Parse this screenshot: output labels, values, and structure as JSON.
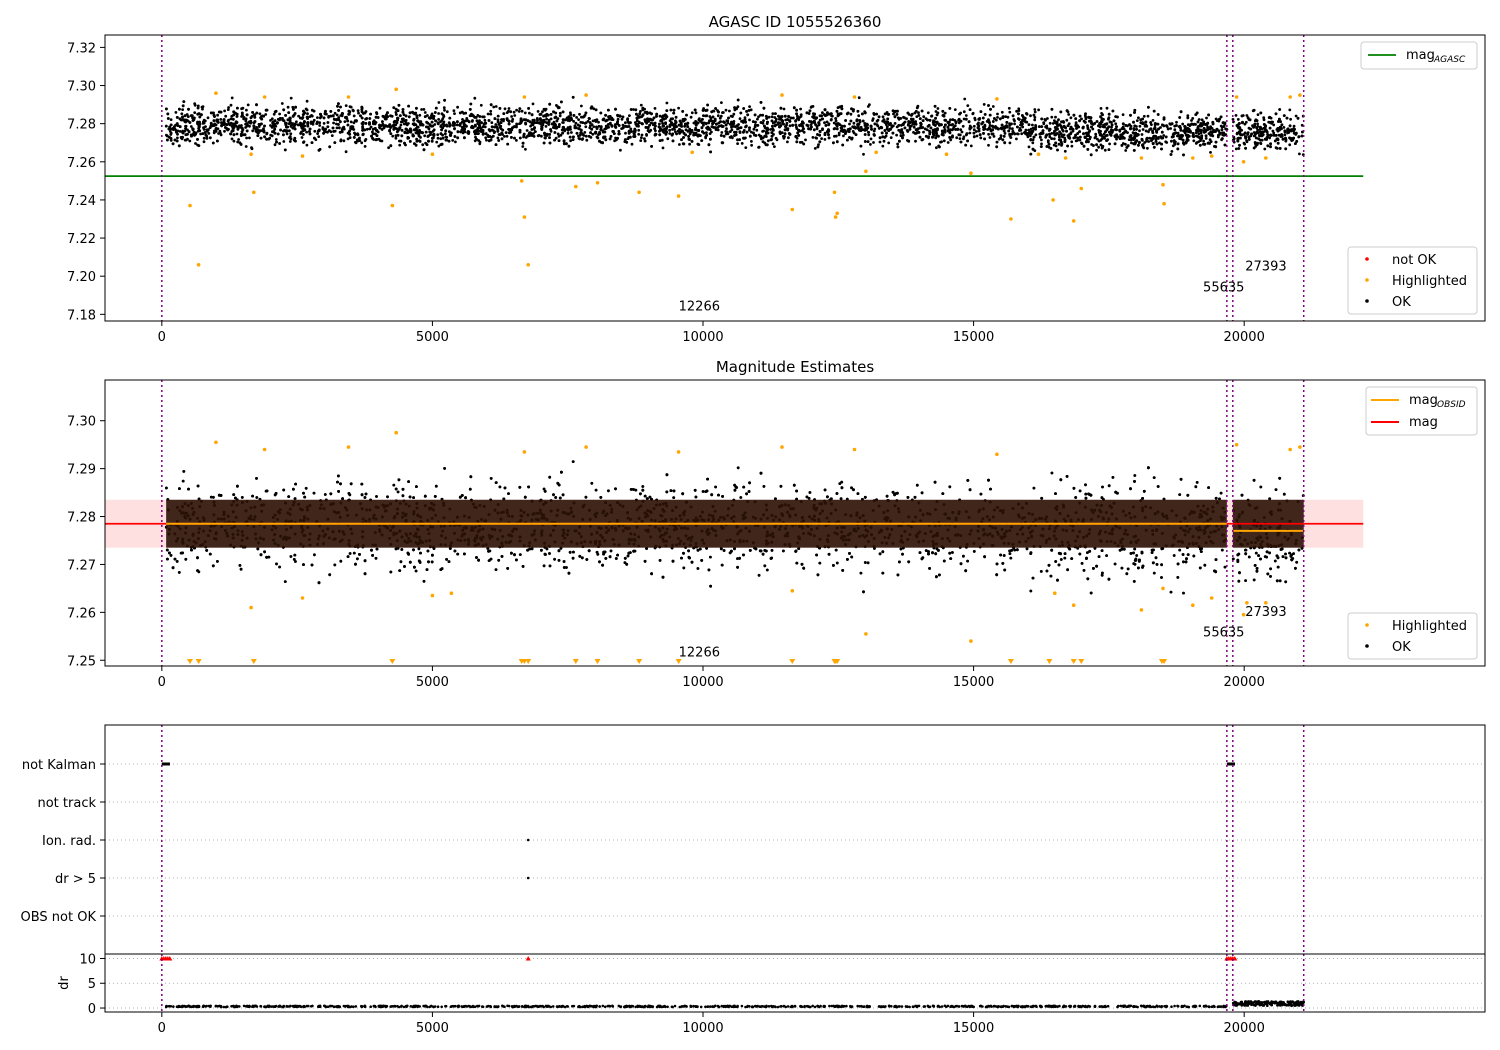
{
  "chart_data": [
    {
      "type": "scatter",
      "title": "AGASC ID 1055526360",
      "xlim": [
        -1050,
        24450
      ],
      "ylim": [
        7.1765,
        7.3265
      ],
      "xticks": [
        0,
        5000,
        10000,
        15000,
        20000
      ],
      "yticks": [
        7.18,
        7.2,
        7.22,
        7.24,
        7.26,
        7.28,
        7.3,
        7.32
      ],
      "x_range_data": [
        80,
        21100
      ],
      "ok_band": {
        "center": 7.279,
        "spread": 0.009
      },
      "series": [
        {
          "name": "not OK",
          "color": "#ff0000",
          "values": []
        },
        {
          "name": "Highlighted",
          "color": "#ffa500",
          "values": [
            [
              520,
              7.237
            ],
            [
              680,
              7.206
            ],
            [
              1700,
              7.244
            ],
            [
              4260,
              7.237
            ],
            [
              6650,
              7.25
            ],
            [
              6700,
              7.231
            ],
            [
              6770,
              7.206
            ],
            [
              7650,
              7.247
            ],
            [
              8050,
              7.249
            ],
            [
              8820,
              7.244
            ],
            [
              9550,
              7.242
            ],
            [
              11650,
              7.235
            ],
            [
              12430,
              7.244
            ],
            [
              12450,
              7.231
            ],
            [
              12480,
              7.233
            ],
            [
              13010,
              7.255
            ],
            [
              14950,
              7.254
            ],
            [
              15690,
              7.23
            ],
            [
              16470,
              7.24
            ],
            [
              16850,
              7.229
            ],
            [
              16990,
              7.246
            ],
            [
              18500,
              7.248
            ],
            [
              18520,
              7.238
            ],
            [
              19990,
              7.26
            ],
            [
              1000,
              7.296
            ],
            [
              1900,
              7.294
            ],
            [
              3450,
              7.294
            ],
            [
              4330,
              7.298
            ],
            [
              6700,
              7.294
            ],
            [
              7840,
              7.295
            ],
            [
              11460,
              7.295
            ],
            [
              12800,
              7.294
            ],
            [
              15430,
              7.293
            ],
            [
              20850,
              7.294
            ],
            [
              21030,
              7.295
            ],
            [
              19860,
              7.294
            ],
            [
              1650,
              7.264
            ],
            [
              2600,
              7.263
            ],
            [
              5000,
              7.264
            ],
            [
              9800,
              7.265
            ],
            [
              13200,
              7.265
            ],
            [
              14500,
              7.264
            ],
            [
              16200,
              7.264
            ],
            [
              16700,
              7.262
            ],
            [
              18100,
              7.262
            ],
            [
              19050,
              7.262
            ],
            [
              19400,
              7.263
            ],
            [
              20400,
              7.262
            ]
          ]
        },
        {
          "name": "OK",
          "color": "#000000",
          "values": []
        }
      ],
      "hlines": [
        {
          "name": "mag_AGASC",
          "value": 7.2525,
          "color": "#008000",
          "x_range": [
            -1050,
            22200
          ]
        }
      ],
      "vlines": [
        0,
        19680,
        19790,
        21100
      ],
      "annotations": [
        {
          "text": "12266",
          "x": 9550,
          "y": 7.182
        },
        {
          "text": "55635",
          "x": 19240,
          "y": 7.192
        },
        {
          "text": "27393",
          "x": 20020,
          "y": 7.203
        }
      ],
      "legend_top": {
        "position": "top-right",
        "entries": [
          {
            "label": "mag",
            "sub": "AGASC",
            "color": "#008000"
          }
        ]
      },
      "legend_bottom": {
        "position": "bottom-right",
        "entries": [
          {
            "label": "not OK",
            "color": "#ff0000"
          },
          {
            "label": "Highlighted",
            "color": "#ffa500"
          },
          {
            "label": "OK",
            "color": "#000000"
          }
        ]
      }
    },
    {
      "type": "scatter",
      "title": "Magnitude Estimates",
      "xlim": [
        -1050,
        24450
      ],
      "ylim": [
        7.2488,
        7.3085
      ],
      "xticks": [
        0,
        5000,
        10000,
        15000,
        20000
      ],
      "yticks": [
        7.25,
        7.26,
        7.27,
        7.28,
        7.29,
        7.3
      ],
      "mag_value": 7.2785,
      "mag_band": [
        7.2735,
        7.2835
      ],
      "obsid_segments": [
        {
          "x_range": [
            80,
            19680
          ],
          "value": 7.2785
        },
        {
          "x_range": [
            19790,
            21100
          ],
          "value": 7.277
        }
      ],
      "ok_band": {
        "center": 7.278,
        "spread": 0.006
      },
      "series": [
        {
          "name": "Highlighted",
          "color": "#ffa500",
          "values": [
            [
              1000,
              7.2955
            ],
            [
              1900,
              7.294
            ],
            [
              3450,
              7.2945
            ],
            [
              4330,
              7.2975
            ],
            [
              6700,
              7.2935
            ],
            [
              7840,
              7.2945
            ],
            [
              9550,
              7.2935
            ],
            [
              11460,
              7.2945
            ],
            [
              12800,
              7.294
            ],
            [
              15430,
              7.293
            ],
            [
              20850,
              7.294
            ],
            [
              21030,
              7.2945
            ],
            [
              19860,
              7.295
            ],
            [
              1650,
              7.261
            ],
            [
              2600,
              7.263
            ],
            [
              5000,
              7.2635
            ],
            [
              5350,
              7.264
            ],
            [
              11650,
              7.2645
            ],
            [
              13010,
              7.2555
            ],
            [
              14950,
              7.254
            ],
            [
              16500,
              7.264
            ],
            [
              16850,
              7.2615
            ],
            [
              18100,
              7.2605
            ],
            [
              18500,
              7.265
            ],
            [
              19050,
              7.2615
            ],
            [
              19400,
              7.263
            ],
            [
              19990,
              7.2595
            ],
            [
              20400,
              7.262
            ],
            [
              20050,
              7.262
            ]
          ]
        },
        {
          "name": "OK",
          "color": "#000000",
          "values": []
        }
      ],
      "floor_markers": [
        520,
        680,
        1700,
        4260,
        6650,
        6700,
        6770,
        7650,
        8050,
        8820,
        9550,
        11650,
        12430,
        12450,
        12480,
        15690,
        16400,
        16850,
        16990,
        18480,
        18520
      ],
      "vlines": [
        0,
        19680,
        19790,
        21100
      ],
      "annotations": [
        {
          "text": "12266",
          "x": 9550,
          "y": 7.2508
        },
        {
          "text": "55635",
          "x": 19240,
          "y": 7.255
        },
        {
          "text": "27393",
          "x": 20020,
          "y": 7.2592
        }
      ],
      "legend_top": {
        "position": "top-right",
        "entries": [
          {
            "label": "mag",
            "sub": "OBSID",
            "color": "#ffa500"
          },
          {
            "label": "mag",
            "sub": "",
            "color": "#ff0000"
          }
        ]
      },
      "legend_bottom": {
        "position": "bottom-right",
        "entries": [
          {
            "label": "Highlighted",
            "color": "#ffa500"
          },
          {
            "label": "OK",
            "color": "#000000"
          }
        ]
      }
    },
    {
      "type": "scatter",
      "title": "",
      "xlim": [
        -1050,
        24450
      ],
      "categories": [
        "not Kalman",
        "not track",
        "Ion. rad.",
        "dr > 5",
        "OBS not OK"
      ],
      "flag_points": {
        "not Kalman": [
          [
            0,
            150
          ],
          [
            19680,
            19830
          ]
        ],
        "Ion. rad.": [
          [
            6770,
            6770
          ]
        ],
        "dr > 5": [
          [
            6770,
            6770
          ]
        ]
      }
    },
    {
      "type": "scatter",
      "title": "",
      "xlim": [
        -1050,
        24450
      ],
      "ylim": [
        -0.8,
        10.9
      ],
      "ylabel": "dr",
      "xticks": [
        0,
        5000,
        10000,
        15000,
        20000
      ],
      "yticks": [
        0,
        5,
        10
      ],
      "clipped_points": [
        [
          0,
          150
        ],
        [
          6770,
          6770
        ],
        [
          19680,
          19830
        ]
      ],
      "dr_baseline": {
        "x_range": [
          80,
          19680
        ],
        "value": 0.2
      },
      "dr_tail": {
        "x_range": [
          19790,
          21100
        ],
        "value": 0.9
      }
    }
  ]
}
